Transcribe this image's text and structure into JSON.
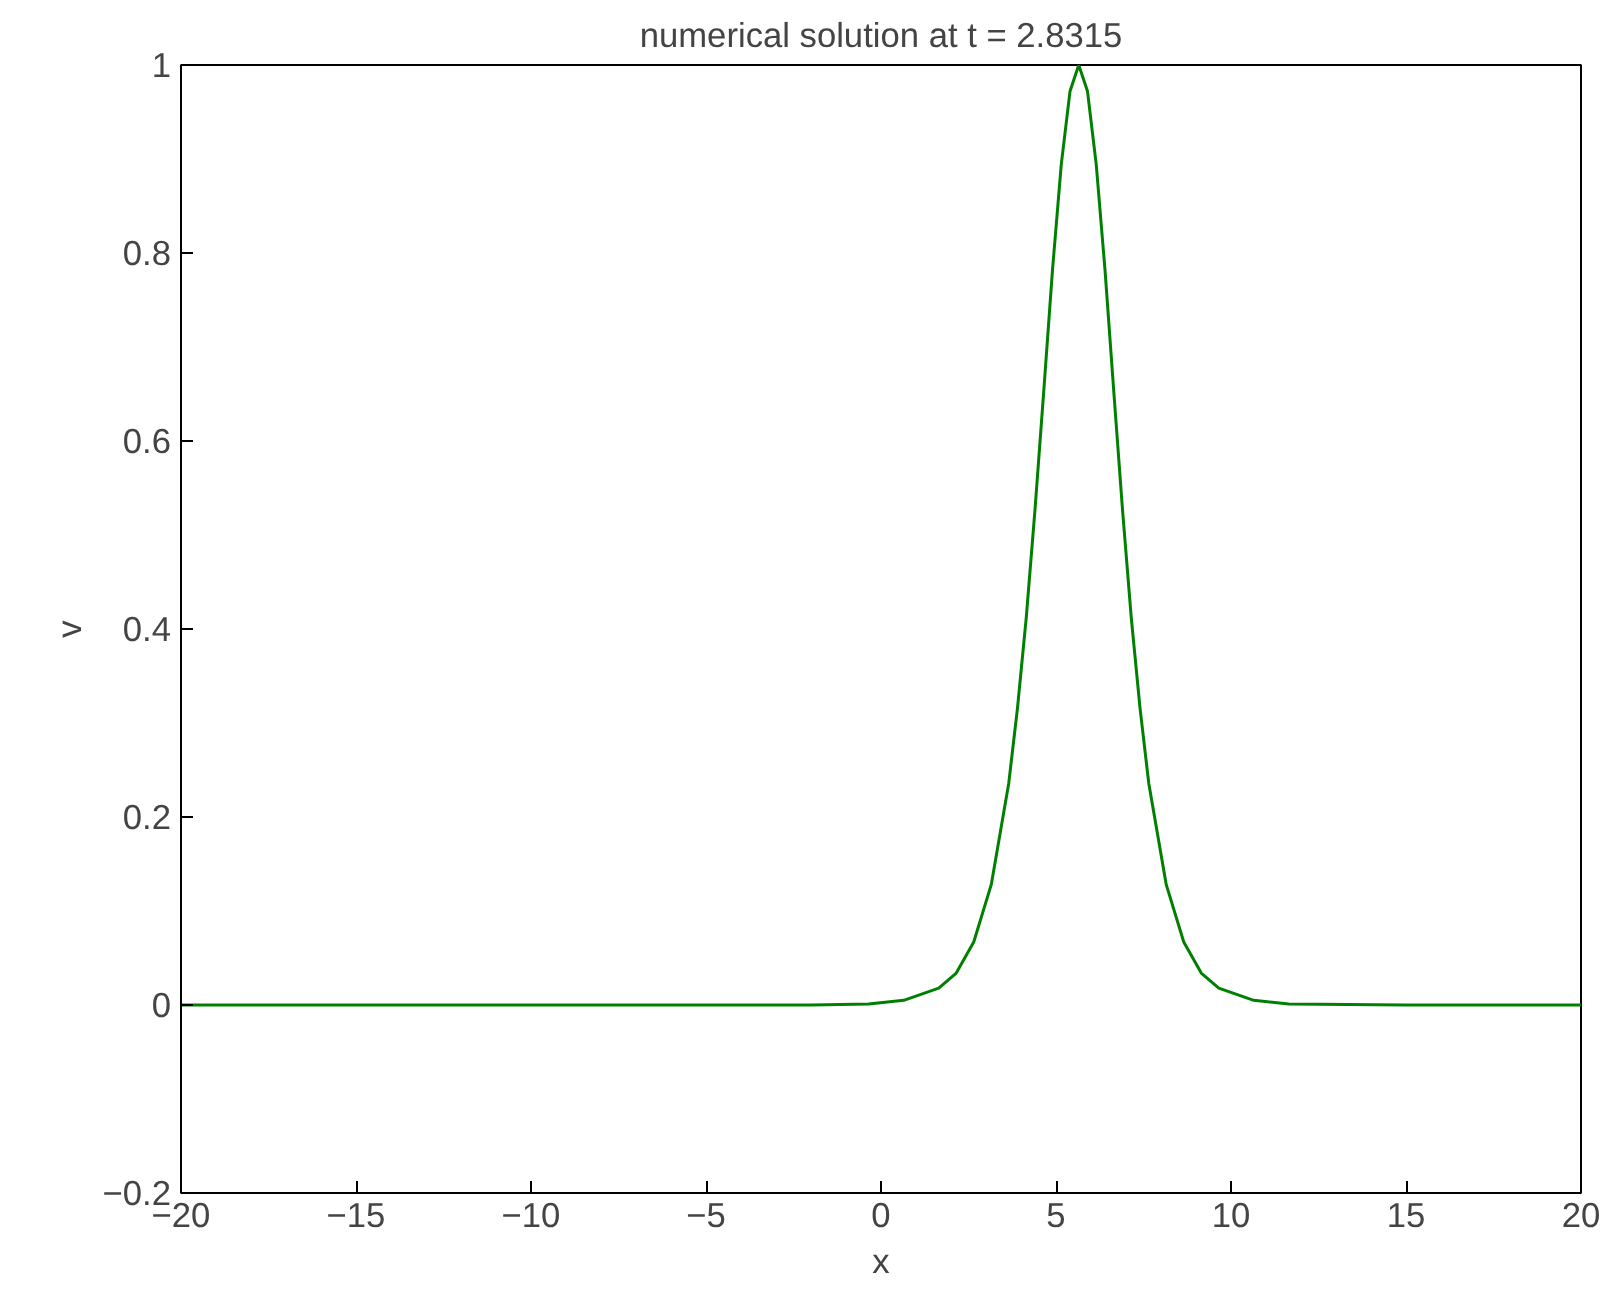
{
  "chart_data": {
    "type": "line",
    "title": "numerical solution at t = 2.8315",
    "xlabel": "x",
    "ylabel": "v",
    "xlim": [
      -20,
      20
    ],
    "xticks": [
      {
        "value": -20,
        "label": "−20"
      },
      {
        "value": -15,
        "label": "−15"
      },
      {
        "value": -10,
        "label": "−10"
      },
      {
        "value": -5,
        "label": "−5"
      },
      0,
      5,
      10,
      15,
      20
    ],
    "ylim": [
      -0.2,
      1
    ],
    "yticks": [
      {
        "value": -0.2,
        "label": "−0.2"
      },
      0,
      0.2,
      0.4,
      0.6,
      0.8,
      1
    ],
    "grid": false,
    "marker": "none",
    "line_style": "solid",
    "series": [
      {
        "color": "#008000",
        "x": [
          -20,
          -10,
          -5,
          -2,
          -0.35,
          0.65,
          1.65,
          2.15,
          2.65,
          3.15,
          3.65,
          3.9,
          4.15,
          4.4,
          4.65,
          4.9,
          5.15,
          5.4,
          5.65,
          5.9,
          6.15,
          6.4,
          6.65,
          6.9,
          7.15,
          7.4,
          7.65,
          8.15,
          8.65,
          9.15,
          9.65,
          10.65,
          11.65,
          15,
          20
        ],
        "values": [
          0,
          0,
          0,
          0,
          0.001,
          0.005,
          0.018,
          0.034,
          0.067,
          0.128,
          0.236,
          0.316,
          0.412,
          0.527,
          0.653,
          0.782,
          0.894,
          0.972,
          1,
          0.972,
          0.894,
          0.782,
          0.653,
          0.527,
          0.412,
          0.316,
          0.236,
          0.128,
          0.067,
          0.034,
          0.018,
          0.005,
          0.001,
          0,
          0
        ]
      }
    ]
  }
}
